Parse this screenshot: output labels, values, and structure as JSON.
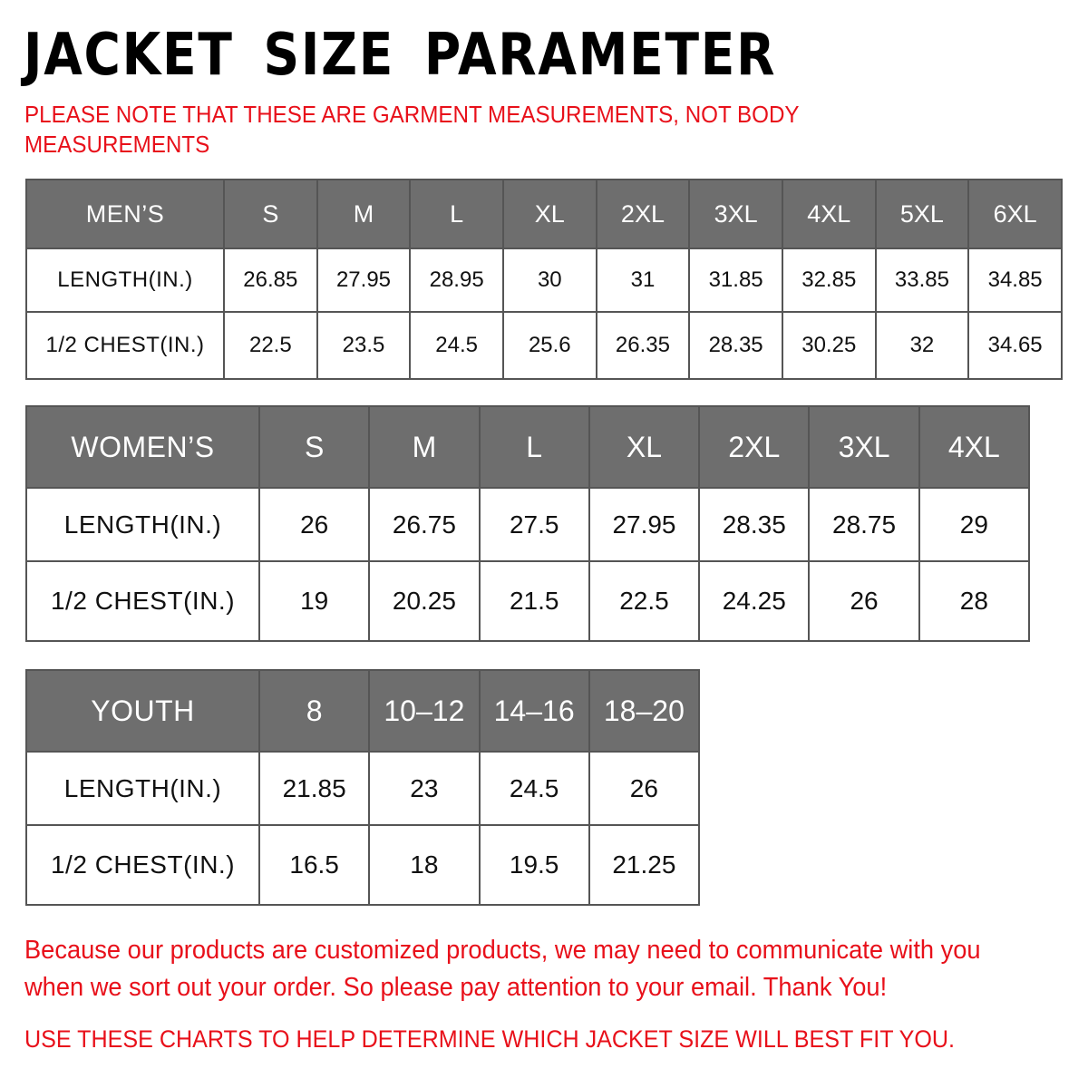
{
  "title": "JACKET SIZE PARAMETER",
  "note": "PLEASE NOTE THAT THESE ARE GARMENT MEASUREMENTS, NOT BODY MEASUREMENTS",
  "colors": {
    "header_bg": "#6e6e6e",
    "accent_red": "#e8101a"
  },
  "tables": {
    "men": {
      "header": [
        "MEN’S",
        "S",
        "M",
        "L",
        "XL",
        "2XL",
        "3XL",
        "4XL",
        "5XL",
        "6XL"
      ],
      "rows": [
        [
          "LENGTH(IN.)",
          "26.85",
          "27.95",
          "28.95",
          "30",
          "31",
          "31.85",
          "32.85",
          "33.85",
          "34.85"
        ],
        [
          "1/2 CHEST(IN.)",
          "22.5",
          "23.5",
          "24.5",
          "25.6",
          "26.35",
          "28.35",
          "30.25",
          "32",
          "34.65"
        ]
      ]
    },
    "women": {
      "header": [
        "WOMEN’S",
        "S",
        "M",
        "L",
        "XL",
        "2XL",
        "3XL",
        "4XL"
      ],
      "rows": [
        [
          "LENGTH(IN.)",
          "26",
          "26.75",
          "27.5",
          "27.95",
          "28.35",
          "28.75",
          "29"
        ],
        [
          "1/2 CHEST(IN.)",
          "19",
          "20.25",
          "21.5",
          "22.5",
          "24.25",
          "26",
          "28"
        ]
      ]
    },
    "youth": {
      "header": [
        "YOUTH",
        "8",
        "10–12",
        "14–16",
        "18–20"
      ],
      "rows": [
        [
          "LENGTH(IN.)",
          "21.85",
          "23",
          "24.5",
          "26"
        ],
        [
          "1/2 CHEST(IN.)",
          "16.5",
          "18",
          "19.5",
          "21.25"
        ]
      ]
    }
  },
  "footer": {
    "message": "Because our products are customized products, we may need to communicate with you when we sort out your order. So please pay attention to your email. Thank You!",
    "tip": "USE THESE CHARTS TO HELP DETERMINE WHICH JACKET SIZE WILL BEST FIT YOU."
  }
}
